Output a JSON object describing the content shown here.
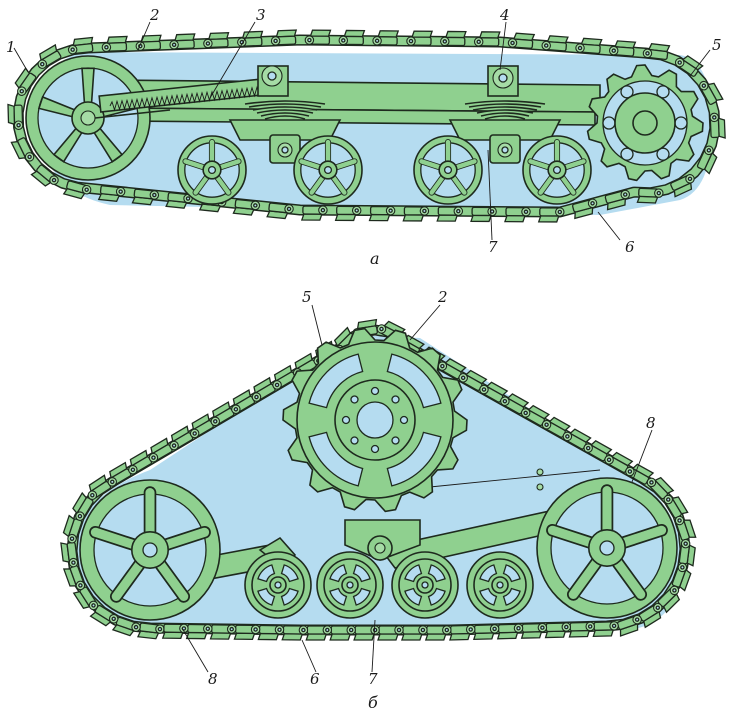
{
  "figure_a": {
    "caption": "а",
    "labels": {
      "l1": "1",
      "l2": "2",
      "l3": "3",
      "l4": "4",
      "l5": "5",
      "l6": "6",
      "l7": "7"
    }
  },
  "figure_b": {
    "caption": "б",
    "labels": {
      "l5": "5",
      "l2": "2",
      "l8_right": "8",
      "l8_left": "8",
      "l6": "6",
      "l7": "7"
    }
  },
  "colors": {
    "part_fill": "#8fd08f",
    "cavity_fill": "#b5dcf0",
    "outline": "#1e2a1e"
  }
}
